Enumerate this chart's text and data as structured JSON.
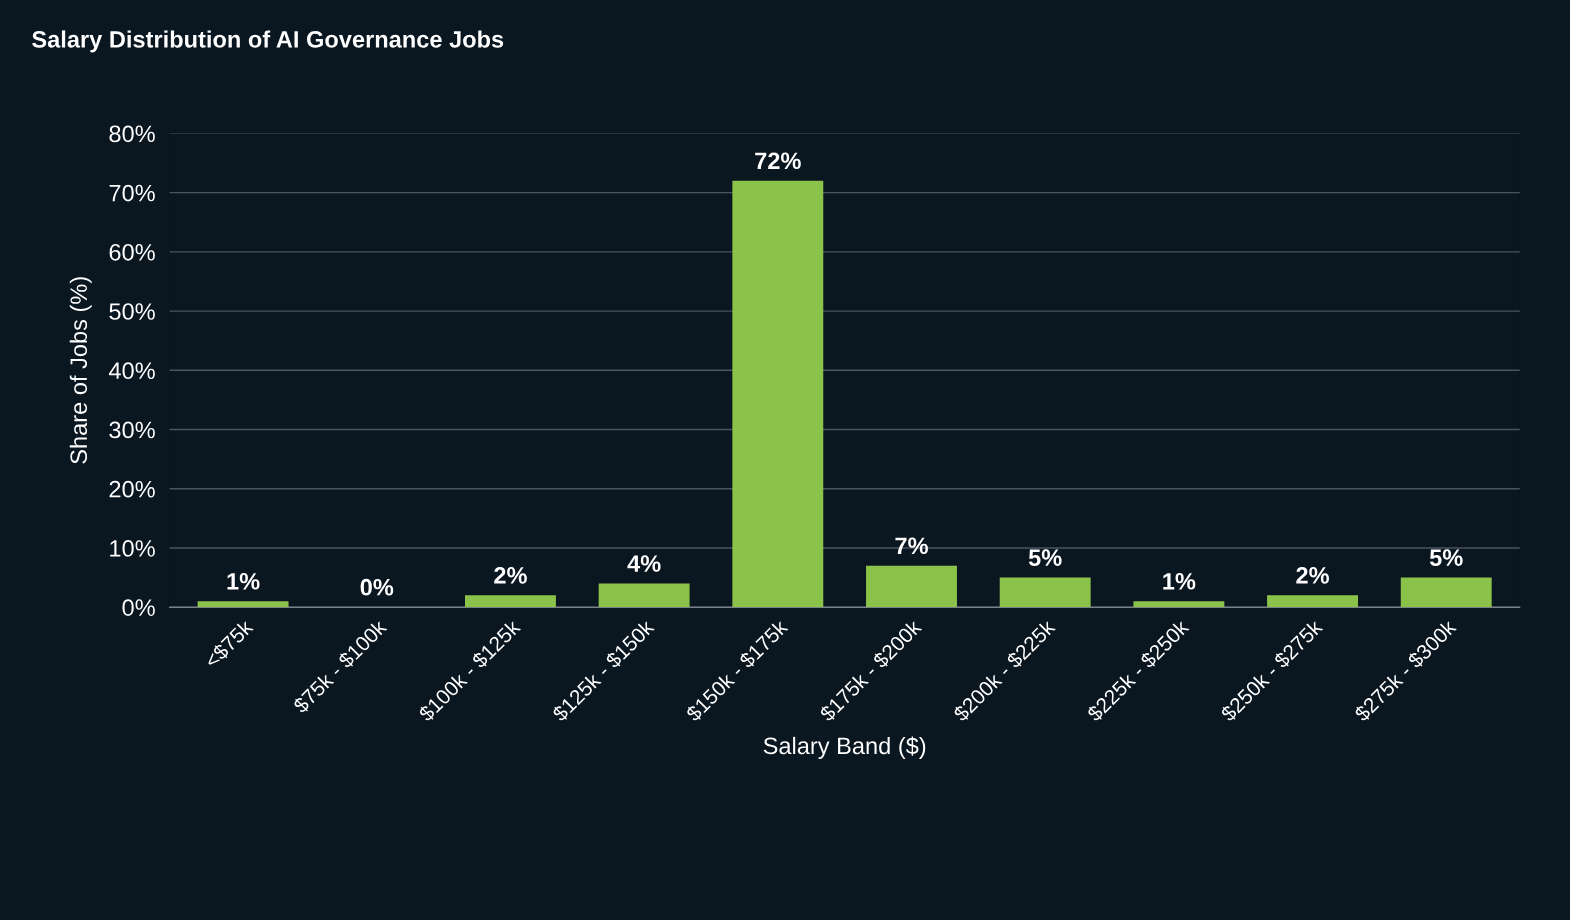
{
  "chart_data": {
    "type": "bar",
    "title": "Salary Distribution of AI Governance Jobs",
    "xlabel": "Salary Band ($)",
    "ylabel": "Share of Jobs (%)",
    "categories": [
      "<$75k",
      "$75k - $100k",
      "$100k - $125k",
      "$125k - $150k",
      "$150k - $175k",
      "$175k - $200k",
      "$200k - $225k",
      "$225k - $250k",
      "$250k - $275k",
      "$275k - $300k"
    ],
    "values": [
      1,
      0,
      2,
      4,
      72,
      7,
      5,
      1,
      2,
      5
    ],
    "value_labels": [
      "1%",
      "0%",
      "2%",
      "4%",
      "72%",
      "7%",
      "5%",
      "1%",
      "2%",
      "5%"
    ],
    "color": "#8bc34a",
    "ylim": [
      0,
      80
    ],
    "yticks": [
      {
        "value": 0,
        "label": "0%"
      },
      {
        "value": 10,
        "label": "10%"
      },
      {
        "value": 20,
        "label": "20%"
      },
      {
        "value": 30,
        "label": "30%"
      },
      {
        "value": 40,
        "label": "40%"
      },
      {
        "value": 50,
        "label": "50%"
      },
      {
        "value": 60,
        "label": "60%"
      },
      {
        "value": 70,
        "label": "70%"
      },
      {
        "value": 80,
        "label": "80%"
      }
    ],
    "grid": "y",
    "legend": false
  }
}
